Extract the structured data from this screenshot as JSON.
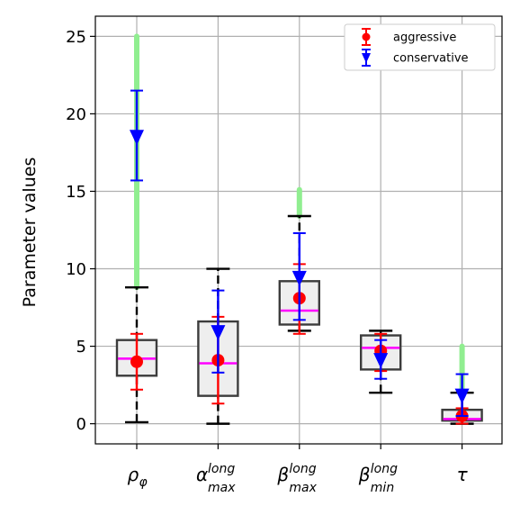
{
  "chart_data": {
    "type": "box",
    "ylabel": "Parameter values",
    "ylim": [
      -1.3,
      26.3
    ],
    "yticks": [
      0,
      5,
      10,
      15,
      20,
      25
    ],
    "grid": true,
    "legend_position": "top-right",
    "categories": [
      {
        "key": "rho_phi",
        "base": "ρ",
        "sub": "φ",
        "sup": ""
      },
      {
        "key": "alpha_max_long",
        "base": "α",
        "sub": "max",
        "sup": "long"
      },
      {
        "key": "beta_max_long",
        "base": "β",
        "sub": "max",
        "sup": "long"
      },
      {
        "key": "beta_min_long",
        "base": "β",
        "sub": "min",
        "sup": "long"
      },
      {
        "key": "tau",
        "base": "τ",
        "sub": "",
        "sup": ""
      }
    ],
    "boxes": [
      {
        "whisker_low": 0.1,
        "q1": 3.1,
        "median": 4.2,
        "q3": 5.4,
        "whisker_high": 8.8
      },
      {
        "whisker_low": 0.0,
        "q1": 1.8,
        "median": 3.9,
        "q3": 6.6,
        "whisker_high": 10.0
      },
      {
        "whisker_low": 6.0,
        "q1": 6.4,
        "median": 7.3,
        "q3": 9.2,
        "whisker_high": 13.4
      },
      {
        "whisker_low": 2.0,
        "q1": 3.5,
        "median": 4.9,
        "q3": 5.7,
        "whisker_high": 6.0
      },
      {
        "whisker_low": 0.0,
        "q1": 0.2,
        "median": 0.3,
        "q3": 0.9,
        "whisker_high": 2.0
      }
    ],
    "range_bars": [
      {
        "low": 8.8,
        "high": 25.0
      },
      null,
      {
        "low": 13.4,
        "high": 15.1
      },
      null,
      {
        "low": 2.0,
        "high": 5.0
      }
    ],
    "series": [
      {
        "name": "aggressive",
        "color": "#ff0000",
        "marker": "circle",
        "values": [
          4.0,
          4.1,
          8.1,
          4.7,
          0.5
        ],
        "err_low": [
          2.2,
          1.3,
          5.8,
          3.4,
          0.0
        ],
        "err_high": [
          5.8,
          6.9,
          10.3,
          5.8,
          1.0
        ]
      },
      {
        "name": "conservative",
        "color": "#0000ff",
        "marker": "triangle-down",
        "values": [
          18.5,
          5.9,
          9.4,
          4.1,
          1.8
        ],
        "err_low": [
          15.7,
          3.3,
          6.7,
          2.9,
          0.5
        ],
        "err_high": [
          21.5,
          8.6,
          12.3,
          5.4,
          3.2
        ]
      }
    ],
    "colors": {
      "box_edge": "#3c3c3c",
      "box_fill": "#eeeeee",
      "median": "#ff00ff",
      "range_bar": "#90ee90",
      "whisker": "#000000",
      "grid": "#b0b0b0"
    }
  }
}
